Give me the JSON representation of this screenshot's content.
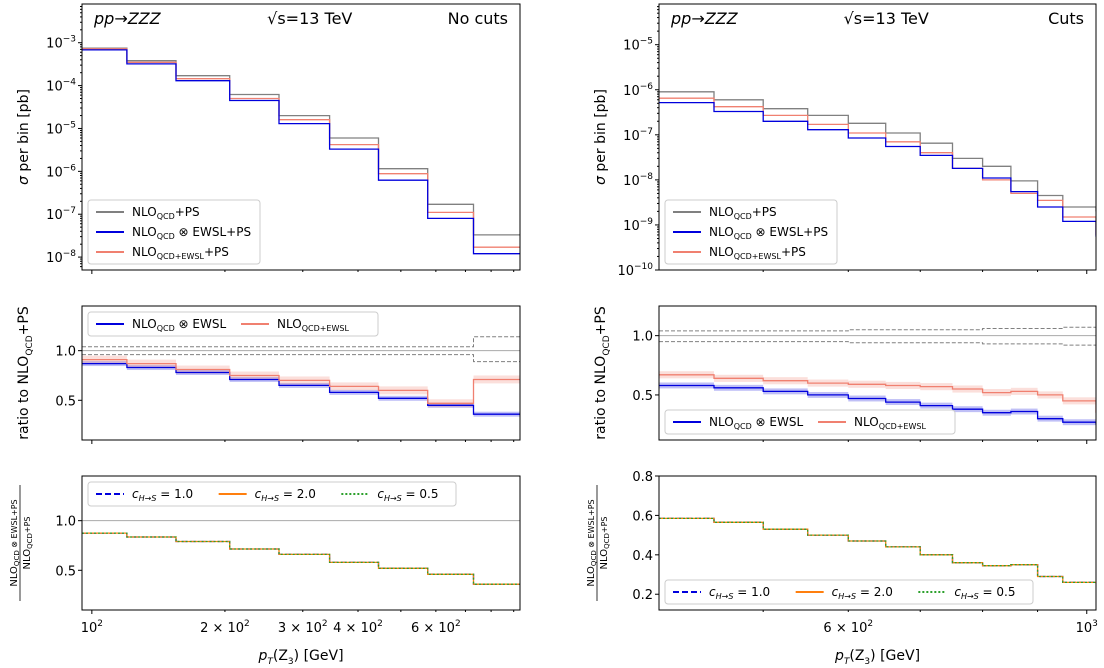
{
  "chart_data": [
    {
      "type": "line",
      "panel": "left-top",
      "x_scale": "log",
      "y_scale": "log",
      "bin_edges": [
        95,
        120,
        155,
        205,
        265,
        345,
        445,
        575,
        730,
        930
      ],
      "xlim": [
        95,
        930
      ],
      "ylim": [
        5e-09,
        0.008
      ],
      "ylabel": "σ per bin [pb]",
      "y_ticks": [
        1e-08,
        1e-07,
        1e-06,
        1e-05,
        0.0001,
        0.001
      ],
      "y_tick_labels": [
        [
          "10",
          "−8"
        ],
        [
          "10",
          "−7"
        ],
        [
          "10",
          "−6"
        ],
        [
          "10",
          "−5"
        ],
        [
          "10",
          "−4"
        ],
        [
          "10",
          "−3"
        ]
      ],
      "annotations": [
        {
          "text": "pp→ZZZ",
          "italic": true,
          "pos": "top-left"
        },
        {
          "text": "√s=13 TeV",
          "pos": "top-center"
        },
        {
          "text": "No cuts",
          "pos": "top-right"
        }
      ],
      "legend": {
        "placement": "lower-left",
        "entries": [
          {
            "text": "NLO",
            "sub": "QCD",
            "tail": "+PS",
            "color": "#808080"
          },
          {
            "text": "NLO",
            "sub": "QCD",
            "tail": " ⊗ EWSL+PS",
            "color": "#0000dd"
          },
          {
            "text": "NLO",
            "sub": "QCD+EWSL",
            "tail": "+PS",
            "color": "#f08070"
          }
        ]
      },
      "series": [
        {
          "name": "NLO_QCD+PS",
          "color": "#808080",
          "values": [
            0.00075,
            0.00038,
            0.00017,
            6.2e-05,
            2e-05,
            6e-06,
            1.15e-06,
            1.7e-07,
            3.3e-08
          ]
        },
        {
          "name": "NLO_QCD+EWSL+PS",
          "color": "#f08070",
          "values": [
            0.00072,
            0.00035,
            0.000145,
            5e-05,
            1.6e-05,
            4.2e-06,
            8.8e-07,
            1.1e-07,
            1.7e-08
          ]
        },
        {
          "name": "NLO_QCD⊗EWSL+PS",
          "color": "#0000dd",
          "values": [
            0.00068,
            0.00032,
            0.00013,
            4.5e-05,
            1.3e-05,
            3.3e-06,
            6.2e-07,
            8e-08,
            1.2e-08
          ]
        }
      ]
    },
    {
      "type": "line",
      "panel": "left-middle",
      "x_scale": "log",
      "y_scale": "linear",
      "bin_edges": [
        95,
        120,
        155,
        205,
        265,
        345,
        445,
        575,
        730,
        930
      ],
      "xlim": [
        95,
        930
      ],
      "ylim": [
        0.1,
        1.45
      ],
      "ylabel": "ratio to NLO",
      "ylabel_sub": "QCD",
      "ylabel_tail": "+PS",
      "y_ticks": [
        0.5,
        1.0
      ],
      "y_tick_labels": [
        "0.5",
        "1.0"
      ],
      "reference_line": 1.0,
      "dashed_bands": {
        "upper": [
          1.04,
          1.04,
          1.04,
          1.04,
          1.04,
          1.04,
          1.04,
          1.04,
          1.14
        ],
        "lower": [
          0.96,
          0.96,
          0.96,
          0.96,
          0.96,
          0.96,
          0.96,
          0.96,
          0.89
        ]
      },
      "legend": {
        "placement": "upper",
        "entries": [
          {
            "text": "NLO",
            "sub": "QCD",
            "tail": " ⊗ EWSL",
            "color": "#0000dd"
          },
          {
            "text": "NLO",
            "sub": "QCD+EWSL",
            "tail": "",
            "color": "#f08070"
          }
        ]
      },
      "series": [
        {
          "name": "NLO_QCD⊗EWSL",
          "color": "#0000dd",
          "band": 0.025,
          "values": [
            0.87,
            0.83,
            0.78,
            0.71,
            0.65,
            0.58,
            0.52,
            0.45,
            0.36
          ]
        },
        {
          "name": "NLO_QCD+EWSL",
          "color": "#f08070",
          "band": 0.04,
          "values": [
            0.91,
            0.87,
            0.81,
            0.75,
            0.7,
            0.64,
            0.6,
            0.47,
            0.71
          ]
        }
      ]
    },
    {
      "type": "line",
      "panel": "left-bottom",
      "x_scale": "log",
      "y_scale": "linear",
      "bin_edges": [
        95,
        120,
        155,
        205,
        265,
        345,
        445,
        575,
        730,
        930
      ],
      "xlim": [
        95,
        930
      ],
      "ylim": [
        0.1,
        1.45
      ],
      "ylabel_num_main": "NLO",
      "ylabel_num_sub": "QCD",
      "ylabel_num_tail": " ⊗ EWSL+PS",
      "ylabel_den_main": "NLO",
      "ylabel_den_sub": "QCD",
      "ylabel_den_tail": "+PS",
      "xlabel": "p",
      "xlabel_sub": "T",
      "xlabel_tail": "(Z",
      "xlabel_sub2": "3",
      "xlabel_unit": ") [GeV]",
      "y_ticks": [
        0.5,
        1.0
      ],
      "y_tick_labels": [
        "0.5",
        "1.0"
      ],
      "x_ticks": [
        100,
        200,
        300,
        400,
        600
      ],
      "x_tick_labels": [
        [
          "10",
          "2"
        ],
        [
          "2 × 10",
          "2"
        ],
        [
          "3 × 10",
          "2"
        ],
        [
          "4 × 10",
          "2"
        ],
        [
          "6 × 10",
          "2"
        ]
      ],
      "reference_line": 1.0,
      "legend": {
        "placement": "upper",
        "entries": [
          {
            "text": "c",
            "sub": "H→S",
            "tail": " = 1.0",
            "color": "#0000dd",
            "dash": "6,3"
          },
          {
            "text": "c",
            "sub": "H→S",
            "tail": " = 2.0",
            "color": "#ff7f0e",
            "dash": ""
          },
          {
            "text": "c",
            "sub": "H→S",
            "tail": " = 0.5",
            "color": "#2ca02c",
            "dash": "2,2"
          }
        ]
      },
      "series": [
        {
          "name": "c_H→S = 1.0",
          "color": "#0000dd",
          "values": [
            0.875,
            0.835,
            0.79,
            0.715,
            0.66,
            0.58,
            0.52,
            0.46,
            0.36
          ]
        },
        {
          "name": "c_H→S = 2.0",
          "color": "#ff7f0e",
          "values": [
            0.875,
            0.835,
            0.79,
            0.715,
            0.66,
            0.58,
            0.52,
            0.46,
            0.36
          ]
        },
        {
          "name": "c_H→S = 0.5",
          "color": "#2ca02c",
          "values": [
            0.875,
            0.835,
            0.79,
            0.715,
            0.66,
            0.58,
            0.52,
            0.46,
            0.36
          ]
        }
      ]
    },
    {
      "type": "line",
      "panel": "right-top",
      "x_scale": "log",
      "y_scale": "log",
      "bin_edges": [
        400,
        450,
        500,
        550,
        600,
        650,
        700,
        750,
        800,
        850,
        900,
        950,
        1020
      ],
      "xlim": [
        400,
        1020
      ],
      "ylim": [
        1e-10,
        8e-05
      ],
      "ylabel": "σ per bin [pb]",
      "y_ticks": [
        1e-10,
        1e-09,
        1e-08,
        1e-07,
        1e-06,
        1e-05
      ],
      "y_tick_labels": [
        [
          "10",
          "−10"
        ],
        [
          "10",
          "−9"
        ],
        [
          "10",
          "−8"
        ],
        [
          "10",
          "−7"
        ],
        [
          "10",
          "−6"
        ],
        [
          "10",
          "−5"
        ]
      ],
      "annotations": [
        {
          "text": "pp→ZZZ",
          "italic": true,
          "pos": "top-left"
        },
        {
          "text": "√s=13 TeV",
          "pos": "top-center"
        },
        {
          "text": "Cuts",
          "pos": "top-right"
        }
      ],
      "legend": {
        "placement": "lower-left",
        "entries": [
          {
            "text": "NLO",
            "sub": "QCD",
            "tail": "+PS",
            "color": "#808080"
          },
          {
            "text": "NLO",
            "sub": "QCD",
            "tail": " ⊗ EWSL+PS",
            "color": "#0000dd"
          },
          {
            "text": "NLO",
            "sub": "QCD+EWSL",
            "tail": "+PS",
            "color": "#f08070"
          }
        ]
      },
      "series": [
        {
          "name": "NLO_QCD+PS",
          "color": "#808080",
          "values": [
            9e-07,
            6e-07,
            3.8e-07,
            2.7e-07,
            1.8e-07,
            1.1e-07,
            6.5e-08,
            3e-08,
            2e-08,
            9.5e-09,
            4.5e-09,
            2.5e-09,
            2e-09
          ]
        },
        {
          "name": "NLO_QCD+EWSL+PS",
          "color": "#f08070",
          "values": [
            6.5e-07,
            4.2e-07,
            2.7e-07,
            1.7e-07,
            1.1e-07,
            7e-08,
            4e-08,
            1.8e-08,
            1e-08,
            5e-09,
            3.5e-09,
            1.5e-09,
            6e-10
          ]
        },
        {
          "name": "NLO_QCD⊗EWSL+PS",
          "color": "#0000dd",
          "values": [
            5.2e-07,
            3.3e-07,
            2e-07,
            1.3e-07,
            8.5e-08,
            5.5e-08,
            3.5e-08,
            1.8e-08,
            1.1e-08,
            5.5e-09,
            2.5e-09,
            1.2e-09,
            5.5e-10
          ]
        }
      ]
    },
    {
      "type": "line",
      "panel": "right-middle",
      "x_scale": "log",
      "y_scale": "linear",
      "bin_edges": [
        400,
        450,
        500,
        550,
        600,
        650,
        700,
        750,
        800,
        850,
        900,
        950,
        1020
      ],
      "xlim": [
        400,
        1020
      ],
      "ylim": [
        0.12,
        1.25
      ],
      "ylabel": "ratio to NLO",
      "ylabel_sub": "QCD",
      "ylabel_tail": "+PS",
      "y_ticks": [
        0.5,
        1.0
      ],
      "y_tick_labels": [
        "0.5",
        "1.0"
      ],
      "reference_line": 1.0,
      "dashed_bands": {
        "upper": [
          1.04,
          1.04,
          1.04,
          1.04,
          1.05,
          1.05,
          1.05,
          1.05,
          1.06,
          1.06,
          1.06,
          1.07,
          1.07
        ],
        "lower": [
          0.95,
          0.95,
          0.95,
          0.95,
          0.94,
          0.94,
          0.94,
          0.94,
          0.93,
          0.93,
          0.93,
          0.92,
          0.92
        ]
      },
      "legend": {
        "placement": "lower-left",
        "entries": [
          {
            "text": "NLO",
            "sub": "QCD",
            "tail": " ⊗ EWSL",
            "color": "#0000dd"
          },
          {
            "text": "NLO",
            "sub": "QCD+EWSL",
            "tail": "",
            "color": "#f08070"
          }
        ]
      },
      "series": [
        {
          "name": "NLO_QCD⊗EWSL",
          "color": "#0000dd",
          "band": 0.025,
          "values": [
            0.58,
            0.56,
            0.53,
            0.5,
            0.47,
            0.44,
            0.41,
            0.38,
            0.35,
            0.36,
            0.3,
            0.27,
            0.25
          ]
        },
        {
          "name": "NLO_QCD+EWSL",
          "color": "#f08070",
          "band": 0.03,
          "values": [
            0.67,
            0.64,
            0.62,
            0.6,
            0.59,
            0.58,
            0.57,
            0.55,
            0.52,
            0.53,
            0.5,
            0.45,
            0.35
          ]
        }
      ]
    },
    {
      "type": "line",
      "panel": "right-bottom",
      "x_scale": "log",
      "y_scale": "linear",
      "bin_edges": [
        400,
        450,
        500,
        550,
        600,
        650,
        700,
        750,
        800,
        850,
        900,
        950,
        1020
      ],
      "xlim": [
        400,
        1020
      ],
      "ylim": [
        0.12,
        0.8
      ],
      "ylabel_num_main": "NLO",
      "ylabel_num_sub": "QCD",
      "ylabel_num_tail": " ⊗ EWSL+PS",
      "ylabel_den_main": "NLO",
      "ylabel_den_sub": "QCD",
      "ylabel_den_tail": "+PS",
      "xlabel": "p",
      "xlabel_sub": "T",
      "xlabel_tail": "(Z",
      "xlabel_sub2": "3",
      "xlabel_unit": ") [GeV]",
      "y_ticks": [
        0.2,
        0.4,
        0.6,
        0.8
      ],
      "y_tick_labels": [
        "0.2",
        "0.4",
        "0.6",
        "0.8"
      ],
      "x_ticks": [
        600,
        1000
      ],
      "x_tick_labels": [
        [
          "6 × 10",
          "2"
        ],
        [
          "10",
          "3"
        ]
      ],
      "legend": {
        "placement": "lower-left",
        "entries": [
          {
            "text": "c",
            "sub": "H→S",
            "tail": " = 1.0",
            "color": "#0000dd",
            "dash": "6,3"
          },
          {
            "text": "c",
            "sub": "H→S",
            "tail": " = 2.0",
            "color": "#ff7f0e",
            "dash": ""
          },
          {
            "text": "c",
            "sub": "H→S",
            "tail": " = 0.5",
            "color": "#2ca02c",
            "dash": "2,2"
          }
        ]
      },
      "series": [
        {
          "name": "c_H→S = 1.0",
          "color": "#0000dd",
          "values": [
            0.585,
            0.565,
            0.53,
            0.5,
            0.47,
            0.44,
            0.4,
            0.36,
            0.345,
            0.35,
            0.29,
            0.26,
            0.255
          ]
        },
        {
          "name": "c_H→S = 2.0",
          "color": "#ff7f0e",
          "values": [
            0.585,
            0.565,
            0.53,
            0.5,
            0.47,
            0.44,
            0.4,
            0.36,
            0.345,
            0.35,
            0.29,
            0.26,
            0.255
          ]
        },
        {
          "name": "c_H→S = 0.5",
          "color": "#2ca02c",
          "values": [
            0.585,
            0.565,
            0.53,
            0.5,
            0.47,
            0.44,
            0.4,
            0.36,
            0.345,
            0.35,
            0.29,
            0.26,
            0.255
          ]
        }
      ]
    }
  ]
}
